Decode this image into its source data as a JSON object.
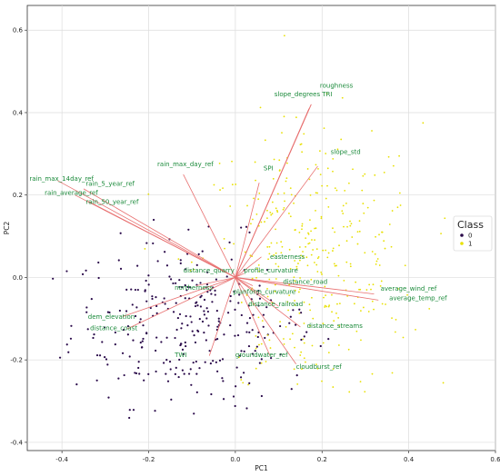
{
  "chart_data": {
    "type": "scatter",
    "title": "",
    "xlabel": "PC1",
    "ylabel": "PC2",
    "xlim": [
      -0.48,
      0.6
    ],
    "ylim": [
      -0.42,
      0.66
    ],
    "xticks": [
      -0.4,
      -0.2,
      0.0,
      0.2,
      0.4,
      0.6
    ],
    "xtick_labels": [
      "-0.4",
      "-0.2",
      "0.0",
      "0.2",
      "0.4",
      "0.6"
    ],
    "yticks": [
      -0.4,
      -0.2,
      0.0,
      0.2,
      0.4,
      0.6
    ],
    "ytick_labels": [
      "-0.4",
      "-0.2",
      "0.0",
      "0.2",
      "0.4",
      "0.6"
    ],
    "grid": true,
    "legend": {
      "title": "Class",
      "placement": "right",
      "entries": [
        {
          "label": "0",
          "color": "#2a0a4a"
        },
        {
          "label": "1",
          "color": "#e8e000"
        }
      ]
    },
    "vector_color": "#e87070",
    "label_color": "#1a8a3a",
    "vectors": [
      {
        "name": "roughness",
        "x": 0.175,
        "y": 0.42,
        "lx": 0.195,
        "ly": 0.46
      },
      {
        "name": "TRI",
        "x": 0.175,
        "y": 0.42,
        "lx": 0.2,
        "ly": 0.44
      },
      {
        "name": "slope_degrees",
        "x": 0.17,
        "y": 0.41,
        "lx": 0.09,
        "ly": 0.44
      },
      {
        "name": "slope_std",
        "x": 0.19,
        "y": 0.27,
        "lx": 0.22,
        "ly": 0.3
      },
      {
        "name": "SPI",
        "x": 0.055,
        "y": 0.23,
        "lx": 0.065,
        "ly": 0.26
      },
      {
        "name": "rain_max_day_ref",
        "x": -0.12,
        "y": 0.25,
        "lx": -0.18,
        "ly": 0.27
      },
      {
        "name": "rain_max_14day_ref",
        "x": -0.41,
        "y": 0.235,
        "lx": -0.475,
        "ly": 0.235
      },
      {
        "name": "rain_5_year_ref",
        "x": -0.35,
        "y": 0.215,
        "lx": -0.345,
        "ly": 0.223
      },
      {
        "name": "rain_average_ref",
        "x": -0.37,
        "y": 0.2,
        "lx": -0.44,
        "ly": 0.2
      },
      {
        "name": "rain_50_year_ref",
        "x": -0.34,
        "y": 0.185,
        "lx": -0.345,
        "ly": 0.178
      },
      {
        "name": "easterness",
        "x": 0.06,
        "y": 0.05,
        "lx": 0.08,
        "ly": 0.045
      },
      {
        "name": "distance_quarry",
        "x": -0.005,
        "y": 0.01,
        "lx": -0.12,
        "ly": 0.012
      },
      {
        "name": "profile_curvature",
        "x": 0.02,
        "y": 0.01,
        "lx": 0.02,
        "ly": 0.012
      },
      {
        "name": "distance_road",
        "x": 0.12,
        "y": -0.02,
        "lx": 0.11,
        "ly": -0.015
      },
      {
        "name": "northerness",
        "x": -0.09,
        "y": -0.02,
        "lx": -0.14,
        "ly": -0.03
      },
      {
        "name": "planform_curvature",
        "x": 0.04,
        "y": -0.02,
        "lx": -0.005,
        "ly": -0.04
      },
      {
        "name": "average_wind_ref",
        "x": 0.32,
        "y": -0.04,
        "lx": 0.335,
        "ly": -0.032
      },
      {
        "name": "average_temp_ref",
        "x": 0.33,
        "y": -0.055,
        "lx": 0.355,
        "ly": -0.055
      },
      {
        "name": "distance_railroad",
        "x": 0.1,
        "y": -0.07,
        "lx": 0.03,
        "ly": -0.07
      },
      {
        "name": "dem_elevation",
        "x": -0.26,
        "y": -0.095,
        "lx": -0.34,
        "ly": -0.1
      },
      {
        "name": "distance_coast",
        "x": -0.25,
        "y": -0.125,
        "lx": -0.335,
        "ly": -0.128
      },
      {
        "name": "distance_streams",
        "x": 0.15,
        "y": -0.12,
        "lx": 0.165,
        "ly": -0.122
      },
      {
        "name": "TWI",
        "x": -0.06,
        "y": -0.19,
        "lx": -0.14,
        "ly": -0.193
      },
      {
        "name": "groundwater_ref",
        "x": 0.08,
        "y": -0.19,
        "lx": 0.0,
        "ly": -0.193
      },
      {
        "name": "cloudburst_ref",
        "x": 0.14,
        "y": -0.21,
        "lx": 0.14,
        "ly": -0.222
      }
    ]
  }
}
